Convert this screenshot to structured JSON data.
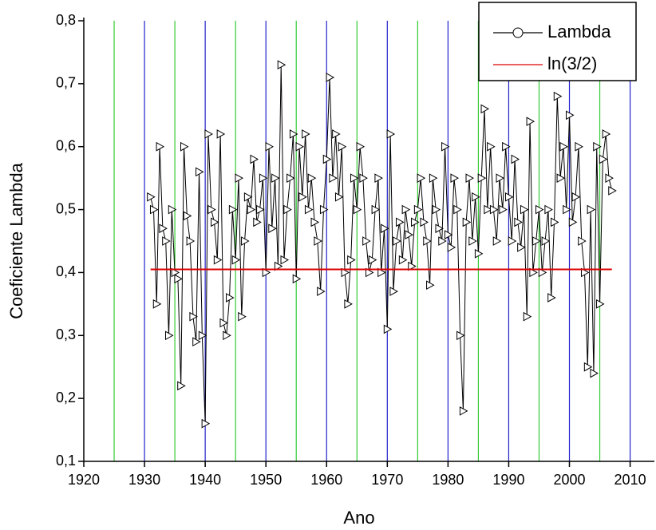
{
  "chart_data": {
    "type": "line",
    "xlabel": "Ano",
    "ylabel": "Coeficiente Lambda",
    "xlim": [
      1920,
      2014
    ],
    "ylim": [
      0.1,
      0.8
    ],
    "xticks": [
      1920,
      1930,
      1940,
      1950,
      1960,
      1970,
      1980,
      1990,
      2000,
      2010
    ],
    "yticks": [
      {
        "value": 0.1,
        "label": "0,1"
      },
      {
        "value": 0.2,
        "label": "0,2"
      },
      {
        "value": 0.3,
        "label": "0,3"
      },
      {
        "value": 0.4,
        "label": "0,4"
      },
      {
        "value": 0.5,
        "label": "0,5"
      },
      {
        "value": 0.6,
        "label": "0,6"
      },
      {
        "value": 0.7,
        "label": "0,7"
      },
      {
        "value": 0.8,
        "label": "0,8"
      }
    ],
    "legend": "upper right",
    "vlines": [
      {
        "color": "#33cc33",
        "x": [
          1925,
          1935,
          1945,
          1955,
          1965,
          1975,
          1985,
          1995,
          2005
        ]
      },
      {
        "color": "#2222cc",
        "x": [
          1930,
          1940,
          1950,
          1960,
          1970,
          1980,
          1990,
          2000,
          2010
        ]
      }
    ],
    "series": [
      {
        "name": "Lambda",
        "color": "#000000",
        "marker": "triangle",
        "x": [
          1931,
          1931.5,
          1932,
          1932.5,
          1933,
          1933.5,
          1934,
          1934.5,
          1935,
          1935.5,
          1936,
          1936.5,
          1937,
          1937.5,
          1938,
          1938.5,
          1939,
          1939.5,
          1940,
          1940.5,
          1941,
          1941.5,
          1942,
          1942.5,
          1943,
          1943.5,
          1944,
          1944.5,
          1945,
          1945.5,
          1946,
          1946.5,
          1947,
          1947.5,
          1948,
          1948.5,
          1949,
          1949.5,
          1950,
          1950.5,
          1951,
          1951.5,
          1952,
          1952.5,
          1953,
          1953.5,
          1954,
          1954.5,
          1955,
          1955.5,
          1956,
          1956.5,
          1957,
          1957.5,
          1958,
          1958.5,
          1959,
          1959.5,
          1960,
          1960.5,
          1961,
          1961.5,
          1962,
          1962.5,
          1963,
          1963.5,
          1964,
          1964.5,
          1965,
          1965.5,
          1966,
          1966.5,
          1967,
          1967.5,
          1968,
          1968.5,
          1969,
          1969.5,
          1970,
          1970.5,
          1971,
          1971.5,
          1972,
          1972.5,
          1973,
          1973.5,
          1974,
          1974.5,
          1975,
          1975.5,
          1976,
          1976.5,
          1977,
          1977.5,
          1978,
          1978.5,
          1979,
          1979.5,
          1980,
          1980.5,
          1981,
          1981.5,
          1982,
          1982.5,
          1983,
          1983.5,
          1984,
          1984.5,
          1985,
          1985.5,
          1986,
          1986.5,
          1987,
          1987.5,
          1988,
          1988.5,
          1989,
          1989.5,
          1990,
          1990.5,
          1991,
          1991.5,
          1992,
          1992.5,
          1993,
          1993.5,
          1994,
          1994.5,
          1995,
          1995.5,
          1996,
          1996.5,
          1997,
          1997.5,
          1998,
          1998.5,
          1999,
          1999.5,
          2000,
          2000.5,
          2001,
          2001.5,
          2002,
          2002.5,
          2003,
          2003.5,
          2004,
          2004.5,
          2005,
          2005.5,
          2006,
          2006.5,
          2007
        ],
        "values": [
          0.52,
          0.5,
          0.35,
          0.6,
          0.47,
          0.45,
          0.3,
          0.5,
          0.4,
          0.39,
          0.22,
          0.6,
          0.49,
          0.45,
          0.33,
          0.29,
          0.56,
          0.3,
          0.16,
          0.62,
          0.5,
          0.48,
          0.42,
          0.62,
          0.32,
          0.3,
          0.36,
          0.5,
          0.42,
          0.55,
          0.33,
          0.45,
          0.52,
          0.5,
          0.58,
          0.48,
          0.5,
          0.55,
          0.4,
          0.6,
          0.47,
          0.55,
          0.41,
          0.73,
          0.42,
          0.5,
          0.55,
          0.62,
          0.39,
          0.6,
          0.52,
          0.62,
          0.5,
          0.55,
          0.48,
          0.45,
          0.37,
          0.5,
          0.58,
          0.71,
          0.55,
          0.62,
          0.52,
          0.6,
          0.4,
          0.35,
          0.42,
          0.55,
          0.5,
          0.6,
          0.55,
          0.45,
          0.4,
          0.42,
          0.5,
          0.55,
          0.4,
          0.47,
          0.31,
          0.62,
          0.37,
          0.45,
          0.48,
          0.42,
          0.5,
          0.46,
          0.41,
          0.48,
          0.5,
          0.55,
          0.48,
          0.45,
          0.38,
          0.55,
          0.5,
          0.47,
          0.45,
          0.6,
          0.46,
          0.44,
          0.55,
          0.5,
          0.3,
          0.18,
          0.48,
          0.55,
          0.45,
          0.52,
          0.43,
          0.55,
          0.66,
          0.5,
          0.6,
          0.5,
          0.45,
          0.55,
          0.5,
          0.6,
          0.52,
          0.45,
          0.58,
          0.48,
          0.44,
          0.5,
          0.33,
          0.64,
          0.4,
          0.45,
          0.5,
          0.4,
          0.45,
          0.5,
          0.36,
          0.48,
          0.68,
          0.55,
          0.6,
          0.5,
          0.65,
          0.48,
          0.52,
          0.6,
          0.45,
          0.4,
          0.25,
          0.5,
          0.24,
          0.6,
          0.35,
          0.58,
          0.62,
          0.55,
          0.53
        ]
      },
      {
        "name": "ln(3/2)",
        "color": "#dd0000",
        "x": [
          1931,
          2007
        ],
        "values": [
          0.405,
          0.405
        ]
      }
    ]
  }
}
